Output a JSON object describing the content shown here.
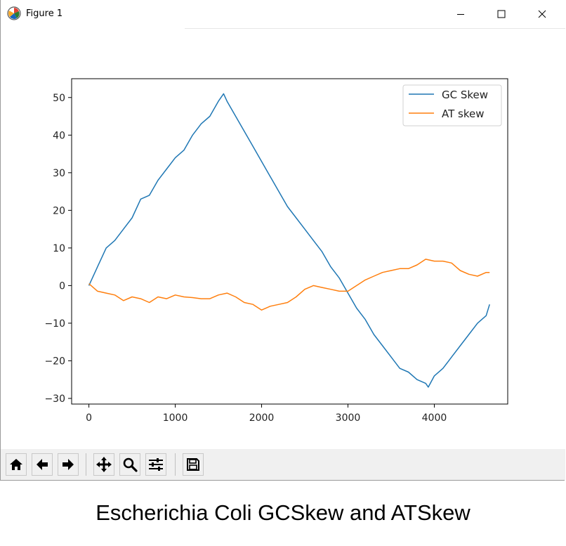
{
  "window": {
    "title": "Figure 1",
    "icons": {
      "app": "matplotlib-logo-icon",
      "minimize": "minimize-icon",
      "maximize": "maximize-icon",
      "close": "close-icon"
    }
  },
  "toolbar": {
    "buttons": [
      {
        "name": "home-button",
        "icon": "home-icon"
      },
      {
        "name": "back-button",
        "icon": "arrow-left-icon"
      },
      {
        "name": "forward-button",
        "icon": "arrow-right-icon"
      },
      {
        "name": "pan-button",
        "icon": "move-arrows-icon"
      },
      {
        "name": "zoom-button",
        "icon": "magnifier-icon"
      },
      {
        "name": "configure-subplots-button",
        "icon": "sliders-icon"
      },
      {
        "name": "save-button",
        "icon": "floppy-disk-icon"
      }
    ]
  },
  "caption": "Escherichia Coli GCSkew and ATSkew",
  "chart_data": {
    "type": "line",
    "title": "",
    "xlabel": "",
    "ylabel": "",
    "xlim": [
      -200,
      4850
    ],
    "ylim": [
      -31.5,
      55
    ],
    "xticks": [
      0,
      1000,
      2000,
      3000,
      4000
    ],
    "yticks": [
      -30,
      -20,
      -10,
      0,
      10,
      20,
      30,
      40,
      50
    ],
    "xtick_labels": [
      "0",
      "1000",
      "2000",
      "3000",
      "4000"
    ],
    "ytick_labels": [
      "−30",
      "−20",
      "−10",
      "0",
      "10",
      "20",
      "30",
      "40",
      "50"
    ],
    "grid": false,
    "legend_position": "top-right",
    "series": [
      {
        "name": "GC Skew",
        "color": "#1f77b4",
        "x": [
          0,
          100,
          200,
          300,
          400,
          500,
          600,
          700,
          800,
          900,
          1000,
          1100,
          1200,
          1300,
          1400,
          1500,
          1560,
          1600,
          1700,
          1800,
          1900,
          2000,
          2100,
          2200,
          2300,
          2400,
          2500,
          2600,
          2700,
          2800,
          2900,
          3000,
          3100,
          3200,
          3300,
          3400,
          3500,
          3600,
          3700,
          3800,
          3900,
          3930,
          4000,
          4100,
          4200,
          4300,
          4400,
          4500,
          4600,
          4640
        ],
        "values": [
          0,
          5,
          10,
          12,
          15,
          18,
          23,
          24,
          28,
          31,
          34,
          36,
          40,
          43,
          45,
          49,
          51,
          49,
          45,
          41,
          37,
          33,
          29,
          25,
          21,
          18,
          15,
          12,
          9,
          5,
          2,
          -2,
          -6,
          -9,
          -13,
          -16,
          -19,
          -22,
          -23,
          -25,
          -26,
          -27,
          -24,
          -22,
          -19,
          -16,
          -13,
          -10,
          -8,
          -5
        ]
      },
      {
        "name": "AT skew",
        "color": "#ff7f0e",
        "x": [
          0,
          100,
          200,
          300,
          400,
          500,
          600,
          700,
          800,
          900,
          1000,
          1100,
          1200,
          1300,
          1400,
          1500,
          1600,
          1700,
          1800,
          1900,
          2000,
          2100,
          2200,
          2300,
          2400,
          2500,
          2600,
          2700,
          2800,
          2900,
          3000,
          3100,
          3200,
          3300,
          3400,
          3500,
          3600,
          3700,
          3800,
          3900,
          4000,
          4100,
          4200,
          4300,
          4400,
          4500,
          4600,
          4640
        ],
        "values": [
          0.5,
          -1.5,
          -2,
          -2.5,
          -4,
          -3,
          -3.5,
          -4.5,
          -3,
          -3.5,
          -2.5,
          -3,
          -3.2,
          -3.5,
          -3.5,
          -2.5,
          -2,
          -3,
          -4.5,
          -5,
          -6.5,
          -5.5,
          -5,
          -4.5,
          -3,
          -1,
          0,
          -0.5,
          -1,
          -1.5,
          -1.5,
          0,
          1.5,
          2.5,
          3.5,
          4,
          4.5,
          4.5,
          5.5,
          7,
          6.5,
          6.5,
          6,
          4,
          3,
          2.5,
          3.5,
          3.5
        ]
      }
    ]
  }
}
